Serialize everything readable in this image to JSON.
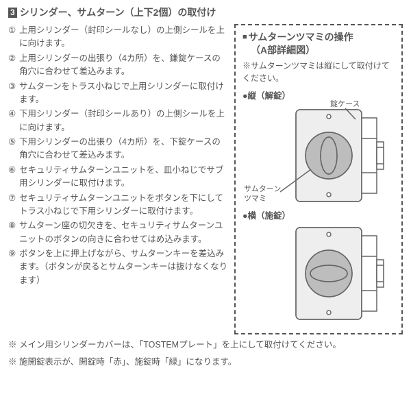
{
  "heading": {
    "number": "3",
    "title": "シリンダー、サムターン（上下2個）の取付け"
  },
  "steps": [
    {
      "marker": "①",
      "text": "上用シリンダー（封印シールなし）の上側シールを上に向けます。"
    },
    {
      "marker": "②",
      "text": "上用シリンダーの出張り（4カ所）を、鎌錠ケースの角穴に合わせて差込みます。"
    },
    {
      "marker": "③",
      "text": "サムターンをトラス小ねじで上用シリンダーに取付けます。"
    },
    {
      "marker": "④",
      "text": "下用シリンダー（封印シールあり）の上側シールを上に向けます。"
    },
    {
      "marker": "⑤",
      "text": "下用シリンダーの出張り（4カ所）を、下錠ケースの角穴に合わせて差込みます。"
    },
    {
      "marker": "⑥",
      "text": "セキュリティサムターンユニットを、皿小ねじでサブ用シリンダーに取付けます。"
    },
    {
      "marker": "⑦",
      "text": "セキュリティサムターンユニットをボタンを下にしてトラス小ねじで下用シリンダーに取付けます。"
    },
    {
      "marker": "⑧",
      "text": "サムターン座の切欠きを、セキュリティサムターンユニットのボタンの向きに合わせてはめ込みます。"
    },
    {
      "marker": "⑨",
      "text": "ボタンを上に押上げながら、サムターンキーを差込みます。（ボタンが戻るとサムターンキーは抜けなくなります）"
    }
  ],
  "sidebox": {
    "title_line1": "サムターンツマミの操作",
    "title_line2": "（A部詳細図）",
    "note": "※サムターンツマミは縦にして取付けてください。",
    "mode_unlock": "●縦（解錠）",
    "mode_lock": "●横（施錠）",
    "label_lockcase": "錠ケース",
    "label_knob1": "サムターン",
    "label_knob2": "ツマミ"
  },
  "footnotes": [
    "※ メイン用シリンダーカバーは、「TOSTEMプレート」を上にして取付けてください。",
    "※ 施開錠表示が、開錠時「赤」、施錠時「緑」になります。"
  ],
  "colors": {
    "stroke": "#666666",
    "fill_light": "#eeeeee",
    "fill_knob": "#bdbdbd",
    "slot": "#ffffff"
  }
}
